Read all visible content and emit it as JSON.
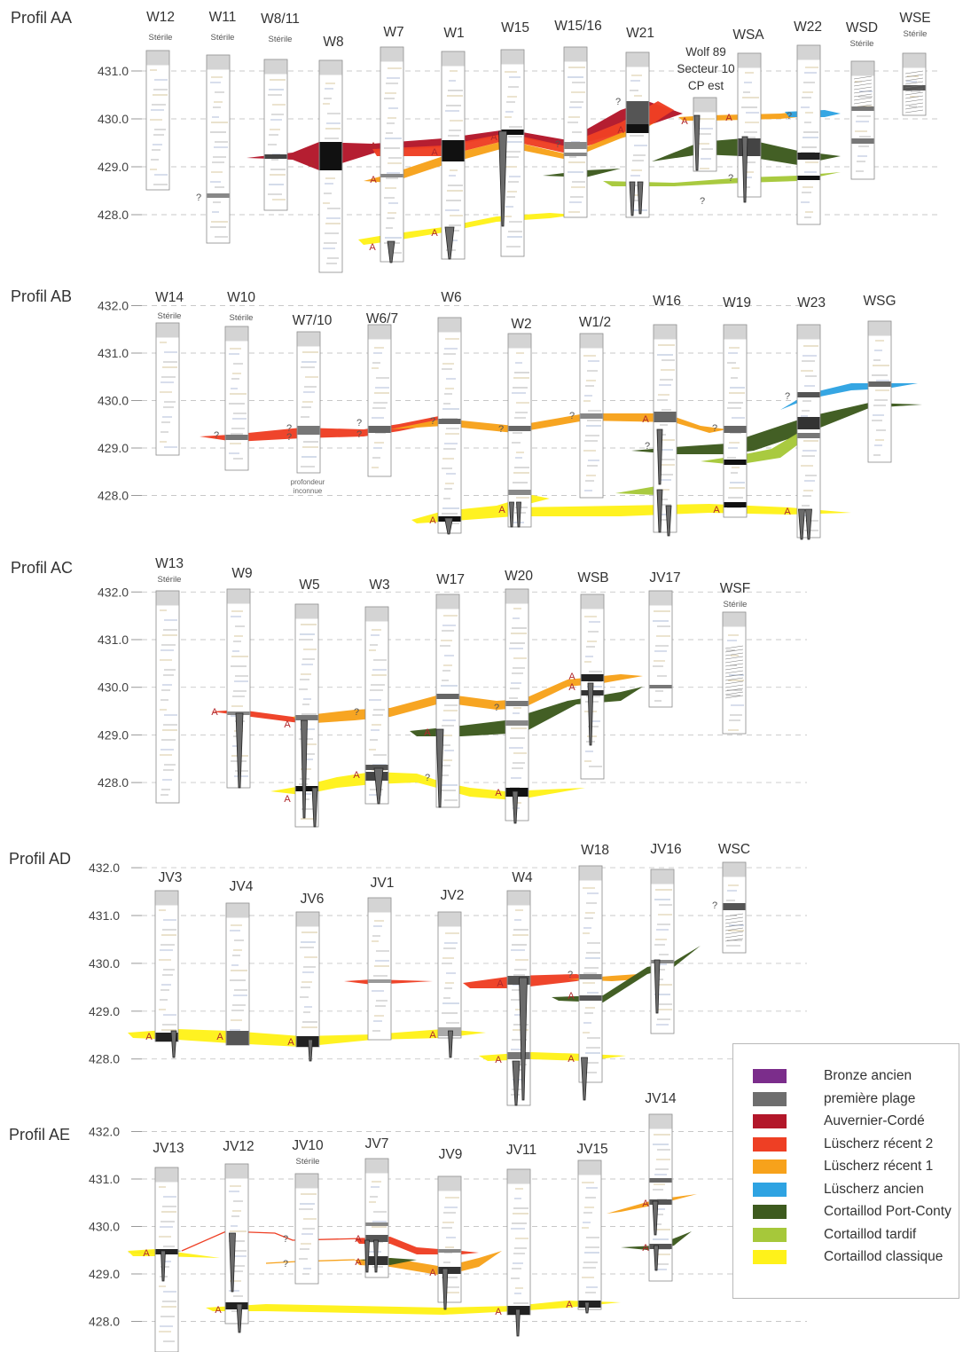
{
  "colors": {
    "bronze_ancien": "#7b2d8b",
    "premiere_plage": "#6e6e6e",
    "auvernier_corde": "#b3172a",
    "luscherz_recent_2": "#ee3f24",
    "luscherz_recent_1": "#f7a21b",
    "luscherz_ancien": "#2ea3e2",
    "cortaillod_port_conty": "#3d5a1e",
    "cortaillod_tardif": "#a6c83a",
    "cortaillod_classique": "#fff21a"
  },
  "legend": [
    {
      "label": "Bronze ancien",
      "color": "#7b2d8b"
    },
    {
      "label": "première plage",
      "color": "#6e6e6e"
    },
    {
      "label": "Auvernier-Cordé",
      "color": "#b3172a"
    },
    {
      "label": "Lüscherz récent 2",
      "color": "#ee3f24"
    },
    {
      "label": "Lüscherz récent 1",
      "color": "#f7a21b"
    },
    {
      "label": "Lüscherz ancien",
      "color": "#2ea3e2"
    },
    {
      "label": "Cortaillod Port-Conty",
      "color": "#3d5a1e"
    },
    {
      "label": "Cortaillod tardif",
      "color": "#a6c83a"
    },
    {
      "label": "Cortaillod classique",
      "color": "#fff21a"
    }
  ],
  "profiles": [
    {
      "title": "Profil AA",
      "axis_labels": [
        "431.0",
        "430.0",
        "429.0",
        "428.0"
      ],
      "cores": [
        {
          "name": "W12",
          "note": "Stérile"
        },
        {
          "name": "W11",
          "note": "Stérile"
        },
        {
          "name": "W8/11",
          "note": "Stérile"
        },
        {
          "name": "W8"
        },
        {
          "name": "W7"
        },
        {
          "name": "W1"
        },
        {
          "name": "W15"
        },
        {
          "name": "W15/16"
        },
        {
          "name": "W21"
        },
        {
          "name": "Wolf 89 Secteur 10 CP est"
        },
        {
          "name": "WSA"
        },
        {
          "name": "W22"
        },
        {
          "name": "WSD",
          "note": "Stérile"
        },
        {
          "name": "WSE",
          "note": "Stérile"
        }
      ]
    },
    {
      "title": "Profil AB",
      "axis_labels": [
        "432.0",
        "431.0",
        "430.0",
        "429.0",
        "428.0"
      ],
      "cores": [
        {
          "name": "W14",
          "note": "Stérile"
        },
        {
          "name": "W10",
          "note": "Stérile"
        },
        {
          "name": "W7/10",
          "note": "profondeur inconnue"
        },
        {
          "name": "W6/7"
        },
        {
          "name": "W6"
        },
        {
          "name": "W2"
        },
        {
          "name": "W1/2"
        },
        {
          "name": "W16"
        },
        {
          "name": "W19"
        },
        {
          "name": "W23"
        },
        {
          "name": "WSG"
        }
      ]
    },
    {
      "title": "Profil AC",
      "axis_labels": [
        "432.0",
        "431.0",
        "430.0",
        "429.0",
        "428.0"
      ],
      "cores": [
        {
          "name": "W13",
          "note": "Stérile"
        },
        {
          "name": "W9"
        },
        {
          "name": "W5"
        },
        {
          "name": "W3"
        },
        {
          "name": "W17"
        },
        {
          "name": "W20"
        },
        {
          "name": "WSB"
        },
        {
          "name": "JV17"
        },
        {
          "name": "WSF",
          "note": "Stérile"
        }
      ]
    },
    {
      "title": "Profil AD",
      "axis_labels": [
        "432.0",
        "431.0",
        "430.0",
        "429.0",
        "428.0"
      ],
      "cores": [
        {
          "name": "JV3"
        },
        {
          "name": "JV4"
        },
        {
          "name": "JV6"
        },
        {
          "name": "JV1"
        },
        {
          "name": "JV2"
        },
        {
          "name": "W4"
        },
        {
          "name": "W18"
        },
        {
          "name": "JV16"
        },
        {
          "name": "WSC"
        }
      ]
    },
    {
      "title": "Profil AE",
      "axis_labels": [
        "432.0",
        "431.0",
        "430.0",
        "429.0",
        "428.0"
      ],
      "cores": [
        {
          "name": "JV13"
        },
        {
          "name": "JV12"
        },
        {
          "name": "JV10",
          "note": "Stérile"
        },
        {
          "name": "JV7"
        },
        {
          "name": "JV9"
        },
        {
          "name": "JV11"
        },
        {
          "name": "JV15"
        },
        {
          "name": "JV14"
        }
      ]
    }
  ],
  "markers": {
    "a": "A",
    "q": "?"
  }
}
